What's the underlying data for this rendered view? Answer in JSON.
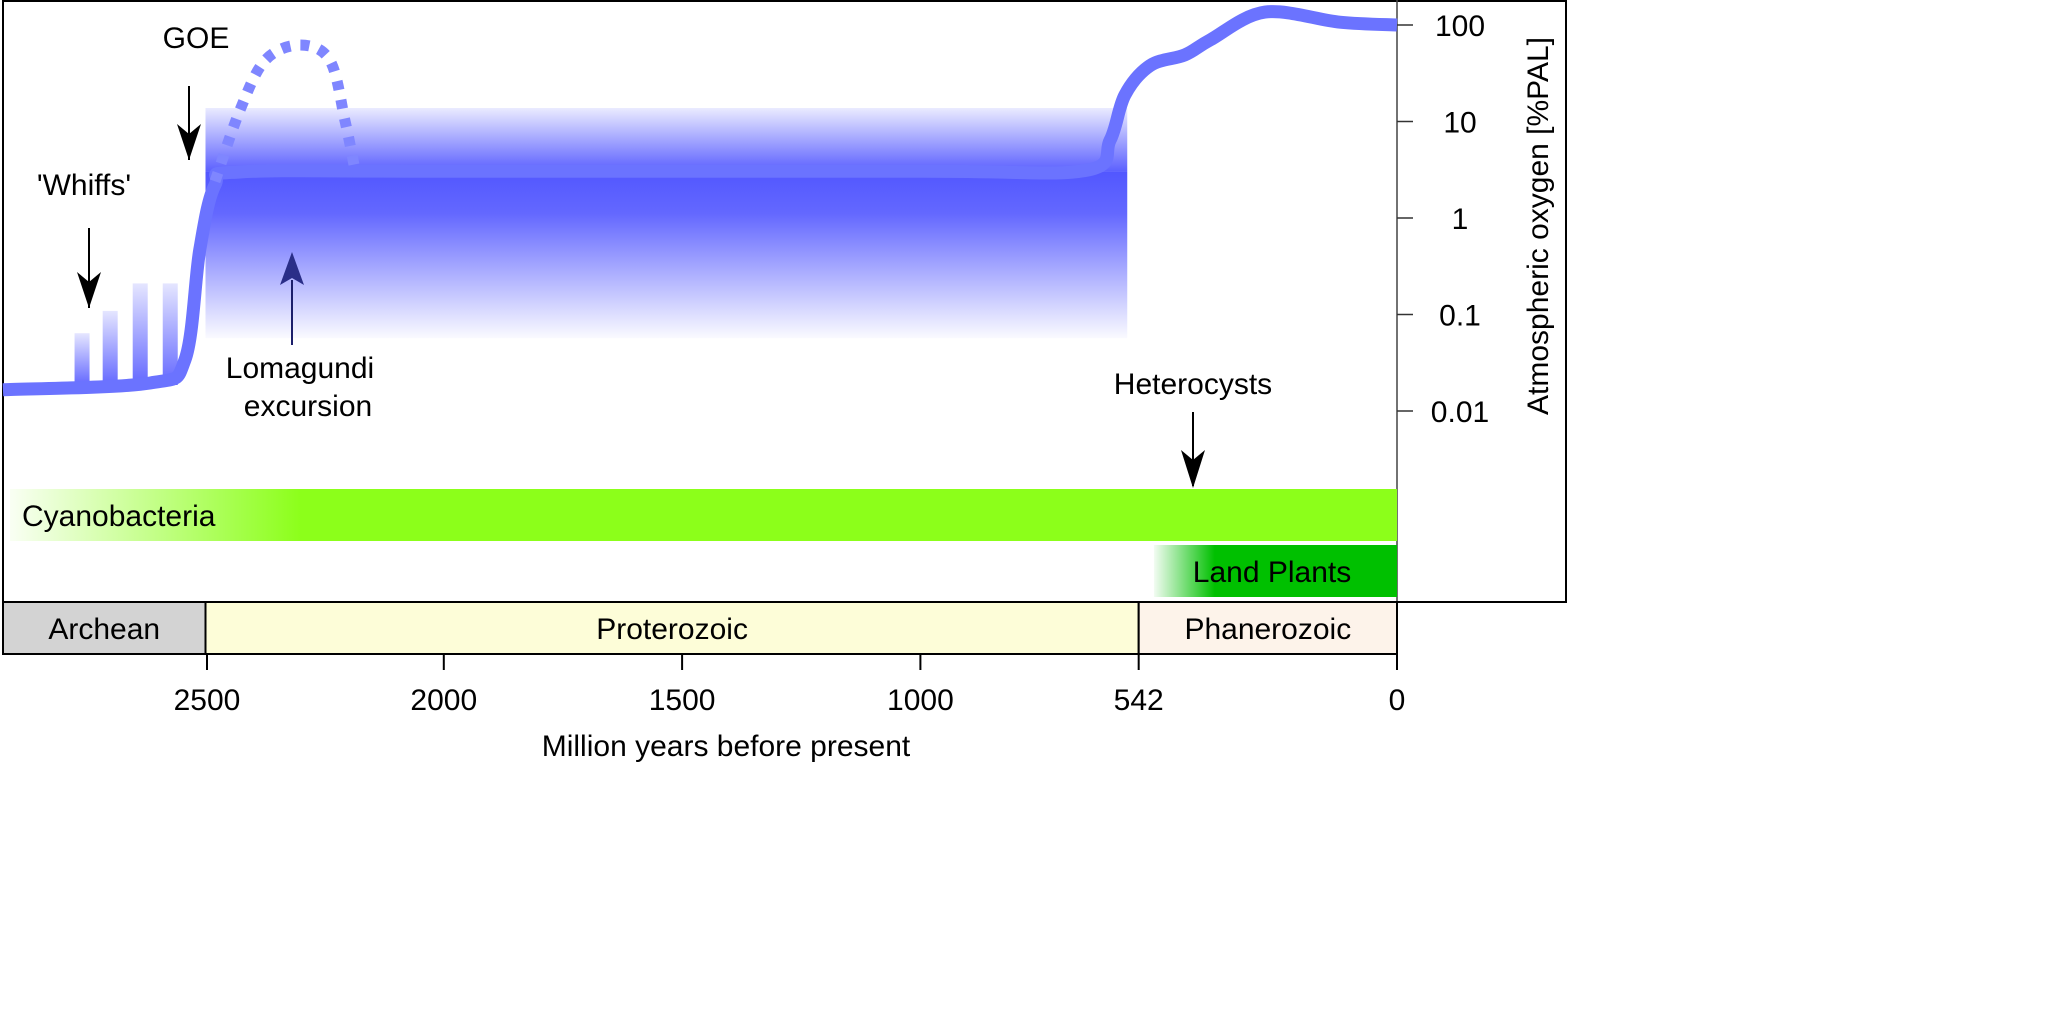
{
  "chart_data": {
    "type": "line",
    "title": "",
    "xlabel": "Million years before present",
    "ylabel": "Atmospheric oxygen [%PAL]",
    "xlim": [
      2925,
      0
    ],
    "yscale": "log",
    "ylim": [
      0.0015,
      150
    ],
    "x_ticks": [
      2500,
      2000,
      1500,
      1000,
      542,
      0
    ],
    "x_tick_labels": [
      "2500",
      "2000",
      "1500",
      "1000",
      "542",
      "0"
    ],
    "y_ticks": [
      100,
      10,
      1,
      0.1,
      0.01
    ],
    "y_tick_labels": [
      "100",
      "10",
      "1",
      "0.1",
      "0.01"
    ],
    "series": [
      {
        "name": "oxygen",
        "color": "#6b73ff",
        "points": [
          [
            2925,
            0.0166
          ],
          [
            2616,
            0.0195
          ],
          [
            2543,
            0.034
          ],
          [
            2512,
            0.47
          ],
          [
            2480,
            2.2
          ],
          [
            2428,
            3.0
          ],
          [
            2000,
            3.05
          ],
          [
            1000,
            3.05
          ],
          [
            655,
            3.1
          ],
          [
            602,
            6.4
          ],
          [
            571,
            18.8
          ],
          [
            518,
            38
          ],
          [
            445,
            49
          ],
          [
            392,
            70
          ],
          [
            277,
            136
          ],
          [
            120,
            107
          ],
          [
            0,
            100
          ]
        ]
      },
      {
        "name": "lomagundi-excursion",
        "style": "dotted",
        "color": "#7f86ff",
        "points": [
          [
            2480,
            2.4
          ],
          [
            2428,
            13
          ],
          [
            2375,
            43
          ],
          [
            2302,
            62
          ],
          [
            2239,
            43
          ],
          [
            2207,
            10
          ],
          [
            2186,
            3.1
          ]
        ]
      }
    ],
    "uncertainty_band": {
      "x_range": [
        2500,
        566
      ],
      "y_range": [
        0.057,
        13.8
      ],
      "center": 3,
      "color": "#5257ff"
    },
    "whiffs": [
      {
        "t": 2759,
        "top": 0.064
      },
      {
        "t": 2700,
        "top": 0.109
      },
      {
        "t": 2637,
        "top": 0.21
      },
      {
        "t": 2574,
        "top": 0.21
      }
    ],
    "annotations": {
      "goe": "GOE",
      "whiffs": "'Whiffs'",
      "lomagundi_line1": "Lomagundi",
      "lomagundi_line2": "excursion",
      "heterocysts": "Heterocysts"
    },
    "organism_bars": [
      {
        "label": "Cyanobacteria",
        "start": 2925,
        "end": 0,
        "color": "#8cff1a"
      },
      {
        "label": "Land Plants",
        "start": 510,
        "end": 0,
        "color": "#00c000"
      }
    ],
    "eras": [
      {
        "label": "Archean",
        "start": 2925,
        "end": 2500,
        "color": "#d3d3d3"
      },
      {
        "label": "Proterozoic",
        "start": 2500,
        "end": 542,
        "color": "#fdfdd8"
      },
      {
        "label": "Phanerozoic",
        "start": 542,
        "end": 0,
        "color": "#fdf3ea"
      }
    ]
  }
}
